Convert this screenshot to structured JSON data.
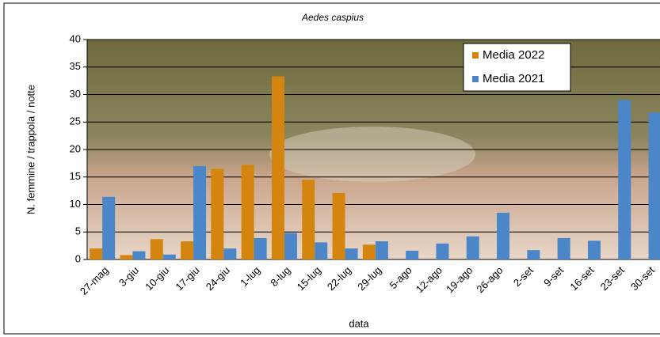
{
  "chart_data": {
    "type": "bar",
    "title": "Aedes caspius",
    "y_label": "N. femmine / trappola / notte",
    "x_label": "data",
    "categories": [
      "27-mag",
      "3-giu",
      "10-giu",
      "17-giu",
      "24-giu",
      "1-lug",
      "8-lug",
      "15-lug",
      "22-lug",
      "29-lug",
      "5-ago",
      "12-ago",
      "19-ago",
      "26-ago",
      "2-set",
      "9-set",
      "16-set",
      "23-set",
      "30-set"
    ],
    "series": [
      {
        "name": "Media 2022",
        "color": "#d4850f",
        "values": [
          2,
          0.8,
          3.7,
          3.3,
          16.5,
          17.2,
          33.3,
          14.5,
          12.1,
          2.7,
          0,
          0,
          0,
          0,
          0,
          0,
          0,
          0,
          0
        ]
      },
      {
        "name": "Media 2021",
        "color": "#4a86c8",
        "values": [
          11.4,
          1.5,
          0.9,
          17,
          2,
          3.9,
          4.8,
          3.1,
          2,
          3.3,
          1.6,
          2.9,
          4.2,
          8.5,
          1.7,
          3.9,
          3.4,
          29,
          26.7
        ]
      }
    ],
    "ylim": [
      0,
      40
    ],
    "yticks": [
      0,
      5,
      10,
      15,
      20,
      25,
      30,
      35,
      40
    ],
    "grid": true,
    "legend": "top-right"
  }
}
